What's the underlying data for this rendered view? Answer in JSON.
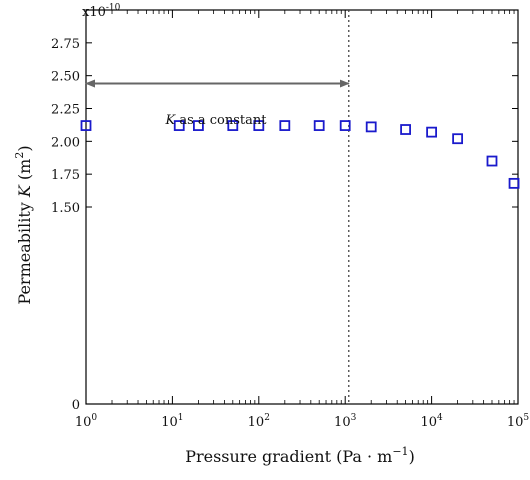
{
  "chart_data": {
    "type": "scatter",
    "title": "",
    "xlabel_main": "Pressure gradient (Pa · m",
    "xlabel_sup": "−1",
    "xlabel_end": ")",
    "ylabel_main": "Permeability ",
    "ylabel_var": "K",
    "ylabel_unit": " (m",
    "ylabel_sup": "2",
    "ylabel_end": ")",
    "y_multiplier_base": "x10",
    "y_multiplier_exp": "-10",
    "x_scale": "log",
    "xlim": [
      1,
      100000
    ],
    "ylim": [
      0,
      3.0
    ],
    "x_ticks": [
      {
        "base": "10",
        "exp": "0"
      },
      {
        "base": "10",
        "exp": "1"
      },
      {
        "base": "10",
        "exp": "2"
      },
      {
        "base": "10",
        "exp": "3"
      },
      {
        "base": "10",
        "exp": "4"
      },
      {
        "base": "10",
        "exp": "5"
      }
    ],
    "y_ticks": [
      "0",
      "1.50",
      "1.75",
      "2.00",
      "2.25",
      "2.50",
      "2.75"
    ],
    "y_tick_values": [
      0,
      1.5,
      1.75,
      2.0,
      2.25,
      2.5,
      2.75
    ],
    "grid": false,
    "marker_color": "#1a1acc",
    "marker": "open-square",
    "series": [
      {
        "name": "",
        "points": [
          {
            "x": 1,
            "y": 2.12
          },
          {
            "x": 12,
            "y": 2.12
          },
          {
            "x": 20,
            "y": 2.12
          },
          {
            "x": 50,
            "y": 2.12
          },
          {
            "x": 100,
            "y": 2.12
          },
          {
            "x": 200,
            "y": 2.12
          },
          {
            "x": 500,
            "y": 2.12
          },
          {
            "x": 1000,
            "y": 2.12
          },
          {
            "x": 2000,
            "y": 2.11
          },
          {
            "x": 5000,
            "y": 2.09
          },
          {
            "x": 10000,
            "y": 2.07
          },
          {
            "x": 20000,
            "y": 2.02
          },
          {
            "x": 50000,
            "y": 1.85
          },
          {
            "x": 90000,
            "y": 1.68
          }
        ]
      }
    ],
    "vline_x": 1100,
    "annotation": {
      "var": "K",
      "text": " as a constant",
      "arrow_from_x": 1,
      "arrow_to_x": 1100,
      "arrow_y": 2.44
    }
  }
}
